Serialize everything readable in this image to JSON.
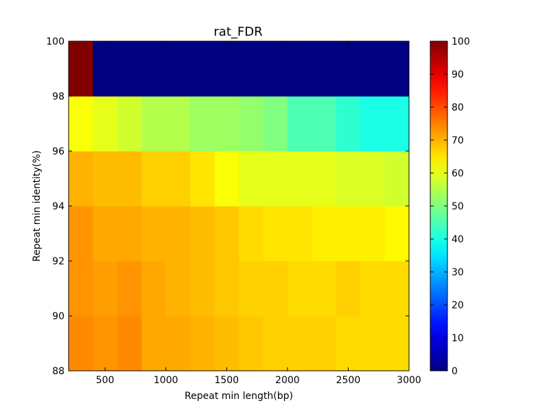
{
  "chart_data": {
    "type": "heatmap",
    "title": "rat_FDR",
    "xlabel": "Repeat min length(bp)",
    "ylabel": "Repeat min identity(%)",
    "x_edges": [
      200,
      400,
      600,
      800,
      1000,
      1200,
      1400,
      1600,
      1800,
      2000,
      2200,
      2400,
      2600,
      2800,
      3000
    ],
    "y_edges": [
      88,
      90,
      92,
      94,
      96,
      98,
      100
    ],
    "xlim": [
      200,
      3000
    ],
    "ylim": [
      88,
      100
    ],
    "xticks": [
      500,
      1000,
      1500,
      2000,
      2500,
      3000
    ],
    "yticks": [
      88,
      90,
      92,
      94,
      96,
      98,
      100
    ],
    "values": [
      [
        74,
        73,
        74,
        71,
        71,
        70,
        69,
        68,
        67,
        67,
        67,
        66,
        66,
        66
      ],
      [
        73,
        72,
        73,
        71,
        70,
        69,
        68,
        67,
        67,
        66,
        66,
        67,
        66,
        66
      ],
      [
        73,
        71,
        71,
        70,
        70,
        69,
        68,
        66,
        65,
        65,
        64,
        64,
        64,
        63
      ],
      [
        70,
        69,
        69,
        67,
        67,
        65,
        62,
        60,
        60,
        60,
        60,
        59,
        59,
        58
      ],
      [
        62,
        60,
        58,
        55,
        55,
        53,
        53,
        52,
        50,
        45,
        45,
        42,
        40,
        40
      ],
      [
        100,
        0,
        0,
        0,
        0,
        0,
        0,
        0,
        0,
        0,
        0,
        0,
        0,
        0
      ]
    ],
    "colorbar": {
      "colormap": "jet",
      "range": [
        0,
        100
      ],
      "ticks": [
        0,
        10,
        20,
        30,
        40,
        50,
        60,
        70,
        80,
        90,
        100
      ]
    }
  }
}
